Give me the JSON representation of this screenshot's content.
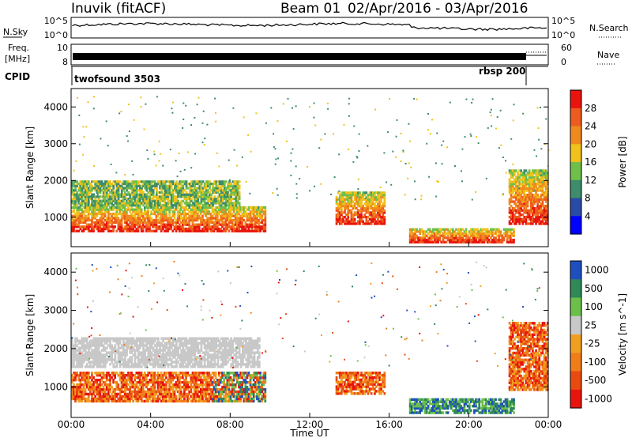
{
  "header": {
    "station": "Inuvik (fitACF)",
    "beam": "Beam 01",
    "date_range": "02/Apr/2016 - 03/Apr/2016"
  },
  "status_panel": {
    "nsky_label": "N.Sky",
    "nsky_top_tick": "10^5",
    "nsky_bottom_tick": "10^0",
    "nsearch_label": "N.Search",
    "nsearch_top_tick": "10^5",
    "nsearch_bottom_tick": "10^0",
    "freq_label_1": "Freq.",
    "freq_label_2": "[MHz]",
    "freq_top_tick": "10",
    "freq_bottom_tick": "8",
    "nave_label": "Nave",
    "nave_top_tick": "60",
    "nave_bottom_tick": "0",
    "cpid_label": "CPID",
    "cpid_1": "twofsound 3503",
    "cpid_2": "rbsp 200"
  },
  "chart_data": [
    {
      "type": "heatmap",
      "title": "",
      "parameter": "Power",
      "xlabel": "",
      "ylabel": "Slant Range [km]",
      "y_ticks": [
        "1000",
        "2000",
        "3000",
        "4000"
      ],
      "ylim": [
        200,
        4500
      ],
      "xlim_hours": [
        0,
        24
      ],
      "colorbar_label": "Power [dB]",
      "colorbar_ticks": [
        "4",
        "8",
        "12",
        "16",
        "20",
        "24",
        "28"
      ],
      "colorbar_range": [
        0,
        32
      ],
      "colorbar_colors": [
        "#0000ff",
        "#2a4aa8",
        "#3e8c6b",
        "#6fbf4a",
        "#f0c21b",
        "#f08a1f",
        "#ee5b1e",
        "#e8140d"
      ],
      "features": [
        {
          "t0": 0.0,
          "t1": 9.8,
          "r_bottom": 600,
          "r_top": 1300,
          "level": "strong"
        },
        {
          "t0": 0.0,
          "t1": 8.5,
          "r_bottom": 1300,
          "r_top": 2000,
          "level": "medium"
        },
        {
          "t0": 13.3,
          "t1": 15.8,
          "r_bottom": 800,
          "r_top": 1700,
          "level": "strong"
        },
        {
          "t0": 17.0,
          "t1": 22.3,
          "r_bottom": 300,
          "r_top": 700,
          "level": "strong"
        },
        {
          "t0": 22.0,
          "t1": 24.0,
          "r_bottom": 800,
          "r_top": 2300,
          "level": "strong"
        }
      ]
    },
    {
      "type": "heatmap",
      "title": "",
      "parameter": "Velocity",
      "xlabel": "Time UT",
      "ylabel": "Slant Range [km]",
      "x_ticks": [
        "00:00",
        "04:00",
        "08:00",
        "12:00",
        "16:00",
        "20:00",
        "00:00"
      ],
      "y_ticks": [
        "1000",
        "2000",
        "3000",
        "4000"
      ],
      "ylim": [
        200,
        4500
      ],
      "xlim_hours": [
        0,
        24
      ],
      "colorbar_label": "Velocity [m s^-1]",
      "colorbar_ticks": [
        "1000",
        "500",
        "100",
        "25",
        "-25",
        "-100",
        "-500",
        "-1000"
      ],
      "colorbar_colors": [
        "#1f4fbf",
        "#2f8a58",
        "#6cc04a",
        "#c8c8c8",
        "#f0a020",
        "#ef7d1a",
        "#e84a10",
        "#e8140d"
      ],
      "features": [
        {
          "t0": 0.0,
          "t1": 9.8,
          "r_bottom": 600,
          "r_top": 1400,
          "level": "receding"
        },
        {
          "t0": 0.0,
          "t1": 9.5,
          "r_bottom": 1500,
          "r_top": 2300,
          "level": "ground"
        },
        {
          "t0": 13.3,
          "t1": 15.8,
          "r_bottom": 800,
          "r_top": 1400,
          "level": "receding"
        },
        {
          "t0": 17.0,
          "t1": 22.3,
          "r_bottom": 300,
          "r_top": 700,
          "level": "approaching"
        },
        {
          "t0": 22.0,
          "t1": 24.0,
          "r_bottom": 900,
          "r_top": 2700,
          "level": "receding"
        }
      ]
    }
  ]
}
